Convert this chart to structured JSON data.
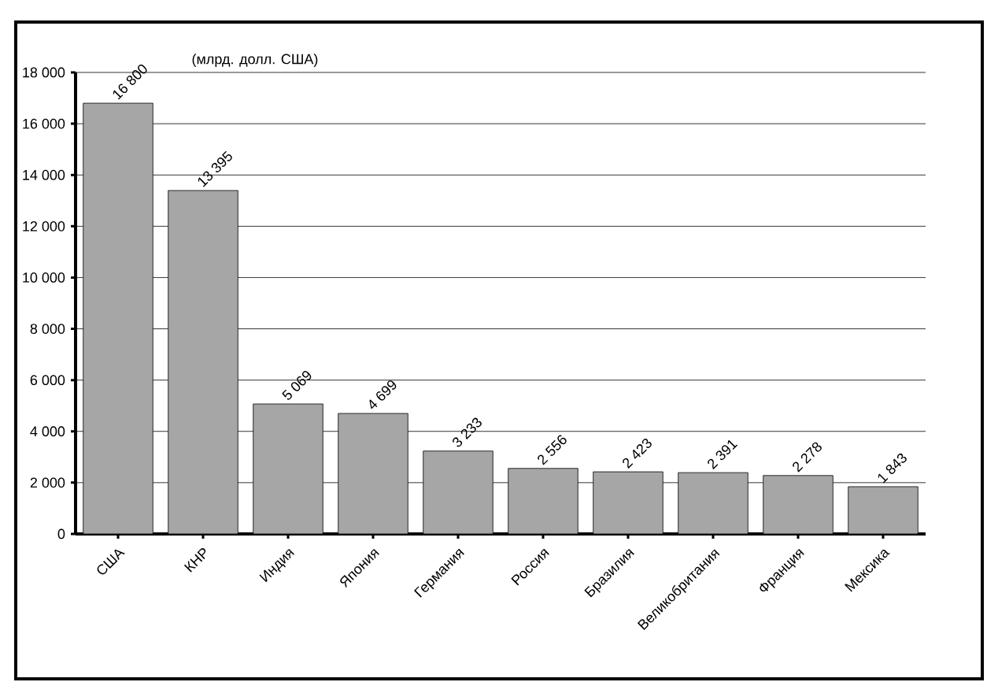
{
  "chart_data": {
    "type": "bar",
    "title": "(млрд. долл. США)",
    "categories": [
      "США",
      "КНР",
      "Индия",
      "Япония",
      "Германия",
      "Россия",
      "Бразилия",
      "Великобритания",
      "Франция",
      "Мексика"
    ],
    "values": [
      16800,
      13395,
      5069,
      4699,
      3233,
      2556,
      2423,
      2391,
      2278,
      1843
    ],
    "value_labels": [
      "16 800",
      "13 395",
      "5 069",
      "4 699",
      "3 233",
      "2 556",
      "2 423",
      "2 391",
      "2 278",
      "1 843"
    ],
    "color": "#a6a6a6",
    "ylim": [
      0,
      18000
    ],
    "yticks": [
      {
        "value": 0,
        "label": "0"
      },
      {
        "value": 2000,
        "label": "2 000"
      },
      {
        "value": 4000,
        "label": "4 000"
      },
      {
        "value": 6000,
        "label": "6 000"
      },
      {
        "value": 8000,
        "label": "8 000"
      },
      {
        "value": 10000,
        "label": "10 000"
      },
      {
        "value": 12000,
        "label": "12 000"
      },
      {
        "value": 14000,
        "label": "14 000"
      },
      {
        "value": 16000,
        "label": "16 000"
      },
      {
        "value": 18000,
        "label": "18 000"
      }
    ],
    "grid": "y"
  }
}
